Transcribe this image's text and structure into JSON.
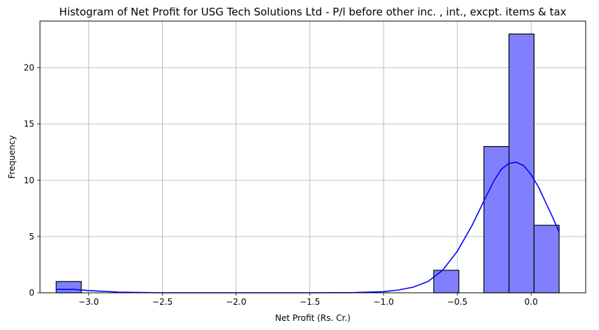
{
  "chart_data": {
    "type": "histogram",
    "title": "Histogram of Net Profit for USG Tech Solutions Ltd - P/l before other inc. , int., excpt. items & tax",
    "xlabel": "Net Profit (Rs. Cr.)",
    "ylabel": "Frequency",
    "xlim": [
      -3.33,
      0.37
    ],
    "ylim": [
      0,
      24.15
    ],
    "xticks": [
      -3.0,
      -2.5,
      -2.0,
      -1.5,
      -1.0,
      -0.5,
      0.0
    ],
    "xtick_labels": [
      "−3.0",
      "−2.5",
      "−2.0",
      "−1.5",
      "−1.0",
      "−0.5",
      "0.0"
    ],
    "yticks": [
      0,
      5,
      10,
      15,
      20
    ],
    "ytick_labels": [
      "0",
      "5",
      "10",
      "15",
      "20"
    ],
    "grid": true,
    "bins": [
      {
        "x0": -3.22,
        "x1": -3.05,
        "count": 1
      },
      {
        "x0": -0.66,
        "x1": -0.49,
        "count": 2
      },
      {
        "x0": -0.32,
        "x1": -0.15,
        "count": 13
      },
      {
        "x0": -0.15,
        "x1": 0.02,
        "count": 23
      },
      {
        "x0": 0.02,
        "x1": 0.19,
        "count": 6
      }
    ],
    "bar_color": "#8080ff",
    "bar_edge_color": "#000000",
    "kde": {
      "color": "#0000ff",
      "x": [
        -3.22,
        -3.1,
        -3.0,
        -2.8,
        -2.5,
        -2.0,
        -1.5,
        -1.2,
        -1.0,
        -0.9,
        -0.8,
        -0.7,
        -0.6,
        -0.5,
        -0.4,
        -0.3,
        -0.25,
        -0.2,
        -0.15,
        -0.1,
        -0.05,
        0.0,
        0.05,
        0.1,
        0.15,
        0.19
      ],
      "y": [
        0.3,
        0.3,
        0.2,
        0.06,
        0.0,
        0.0,
        0.0,
        0.02,
        0.1,
        0.25,
        0.5,
        1.0,
        2.0,
        3.7,
        6.0,
        8.7,
        10.0,
        11.0,
        11.5,
        11.6,
        11.3,
        10.5,
        9.4,
        8.0,
        6.6,
        5.4
      ]
    }
  }
}
